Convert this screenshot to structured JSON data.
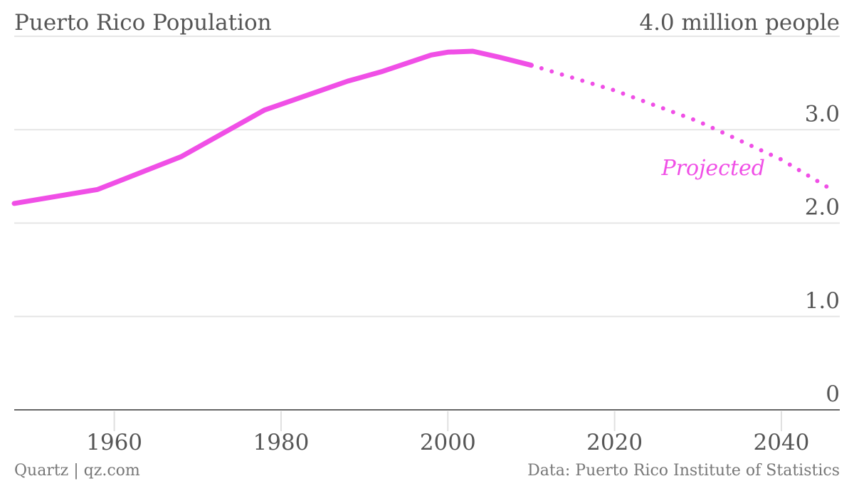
{
  "chart_data": {
    "type": "line",
    "title": "Puerto Rico Population",
    "unit_label": "4.0 million people",
    "annotation": "Projected",
    "source": "Data: Puerto Rico Institute of Statistics",
    "credit": "Quartz | qz.com",
    "xlim": [
      1948,
      2047
    ],
    "ylim": [
      0,
      4.0
    ],
    "x_ticks": [
      {
        "value": 1960,
        "label": "1960"
      },
      {
        "value": 1980,
        "label": "1980"
      },
      {
        "value": 2000,
        "label": "2000"
      },
      {
        "value": 2020,
        "label": "2020"
      },
      {
        "value": 2040,
        "label": "2040"
      }
    ],
    "y_ticks": [
      {
        "value": 0,
        "label": "0"
      },
      {
        "value": 1.0,
        "label": "1.0"
      },
      {
        "value": 2.0,
        "label": "2.0"
      },
      {
        "value": 3.0,
        "label": "3.0"
      },
      {
        "value": 4.0,
        "label": ""
      }
    ],
    "grid": true,
    "color": "#f04fe6",
    "series": [
      {
        "style": "solid",
        "x": [
          1948,
          1958,
          1968,
          1978,
          1988,
          1992,
          1998,
          2000,
          2003,
          2006,
          2010
        ],
        "y": [
          2.21,
          2.36,
          2.71,
          3.21,
          3.52,
          3.62,
          3.8,
          3.83,
          3.84,
          3.78,
          3.69
        ]
      },
      {
        "style": "dotted",
        "x": [
          2010,
          2020,
          2030,
          2040,
          2046
        ],
        "y": [
          3.69,
          3.42,
          3.09,
          2.68,
          2.36
        ]
      }
    ]
  }
}
